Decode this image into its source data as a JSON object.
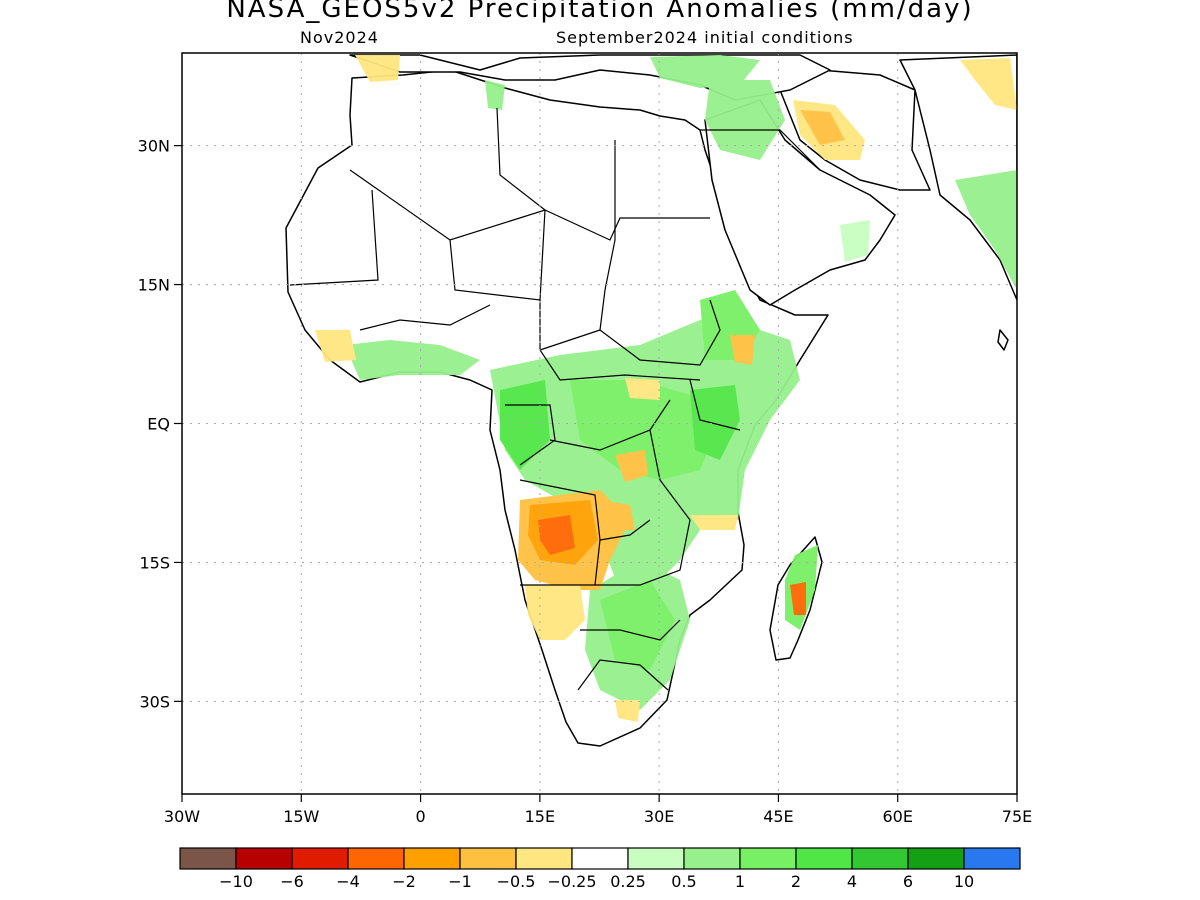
{
  "title": "NASA_GEOS5v2 Precipitation Anomalies (mm/day)",
  "subtitle_left": "Nov2024",
  "subtitle_right": "September2024 initial conditions",
  "map": {
    "lon_range": [
      -30,
      75
    ],
    "lat_range": [
      -40,
      40
    ],
    "lon_ticks": [
      {
        "value": -30,
        "label": "30W"
      },
      {
        "value": -15,
        "label": "15W"
      },
      {
        "value": 0,
        "label": "0"
      },
      {
        "value": 15,
        "label": "15E"
      },
      {
        "value": 30,
        "label": "30E"
      },
      {
        "value": 45,
        "label": "45E"
      },
      {
        "value": 60,
        "label": "60E"
      },
      {
        "value": 75,
        "label": "75E"
      }
    ],
    "lat_ticks": [
      {
        "value": 30,
        "label": "30N"
      },
      {
        "value": 15,
        "label": "15N"
      },
      {
        "value": 0,
        "label": "EQ"
      },
      {
        "value": -15,
        "label": "15S"
      },
      {
        "value": -30,
        "label": "30S"
      }
    ],
    "grid": "dotted"
  },
  "colorbar": {
    "colors": [
      "#7a5548",
      "#b80000",
      "#e01c00",
      "#ff6600",
      "#ffa000",
      "#ffc040",
      "#ffe680",
      "#ffffff",
      "#c8ffc0",
      "#96f08c",
      "#78f064",
      "#50e646",
      "#32c832",
      "#14a014",
      "#2878f0"
    ],
    "labels": [
      "−10",
      "−6",
      "−4",
      "−2",
      "−1",
      "−0.5",
      "−0.25",
      "0.25",
      "0.5",
      "1",
      "2",
      "4",
      "6",
      "10"
    ]
  }
}
